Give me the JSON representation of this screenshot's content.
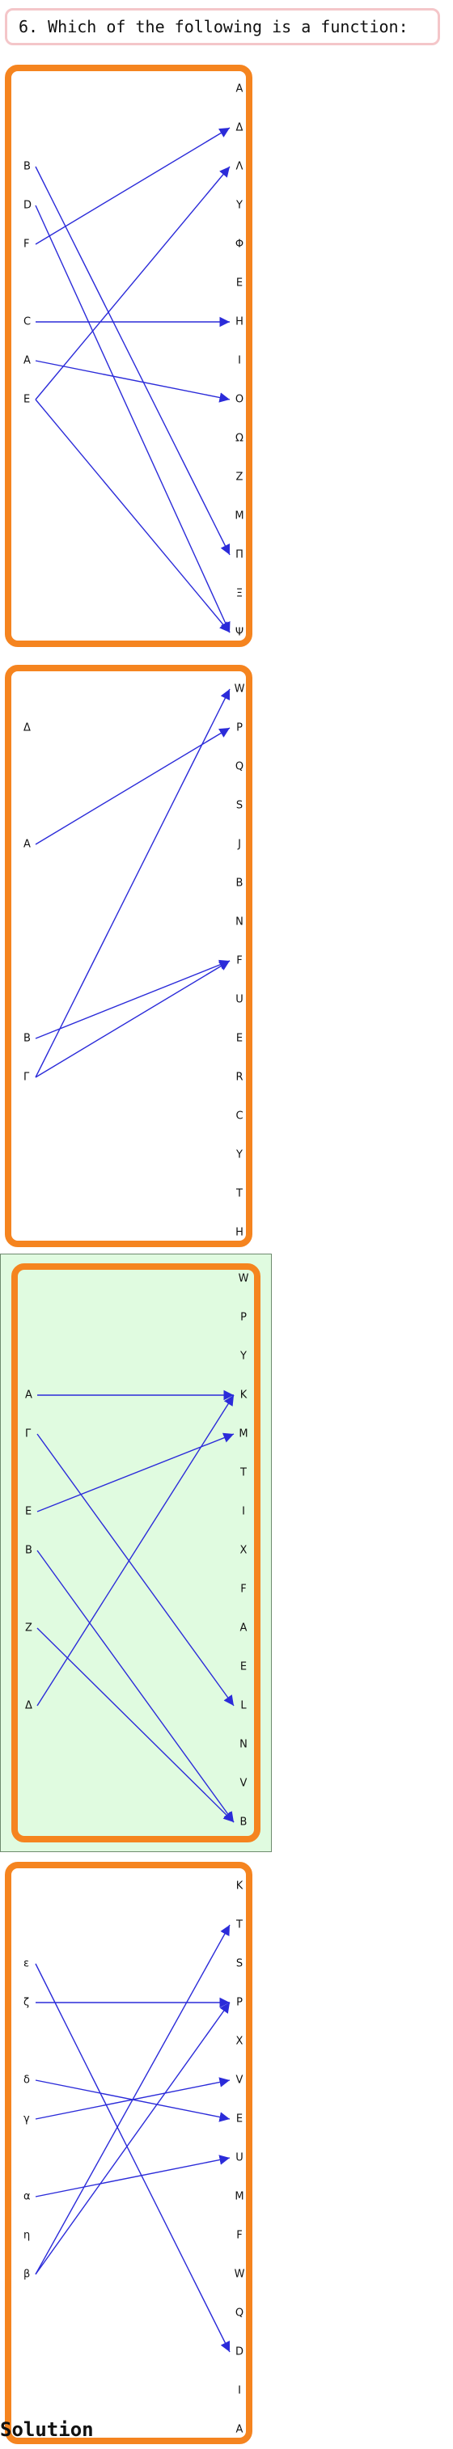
{
  "question": {
    "text": "6. Which of the following is a function:"
  },
  "options": [
    {
      "domain": [
        "B",
        "D",
        "F",
        "C",
        "A",
        "E"
      ],
      "codomain": [
        "A",
        "Δ",
        "Λ",
        "Y",
        "Φ",
        "E",
        "H",
        "I",
        "O",
        "Ω",
        "Z",
        "M",
        "Π",
        "Ξ",
        "Ψ"
      ],
      "arrows": [
        [
          "B",
          "Π"
        ],
        [
          "D",
          "Ψ"
        ],
        [
          "F",
          "Δ"
        ],
        [
          "C",
          "H"
        ],
        [
          "A",
          "O"
        ],
        [
          "E",
          "Λ"
        ],
        [
          "E",
          "Ψ"
        ]
      ],
      "selected": false
    },
    {
      "domain": [
        "Δ",
        "A",
        "B",
        "Γ"
      ],
      "codomain": [
        "W",
        "P",
        "Q",
        "S",
        "J",
        "B",
        "N",
        "F",
        "U",
        "E",
        "R",
        "C",
        "Y",
        "T",
        "H"
      ],
      "arrows": [
        [
          "A",
          "P"
        ],
        [
          "B",
          "F"
        ],
        [
          "Γ",
          "W"
        ],
        [
          "Γ",
          "F"
        ]
      ],
      "selected": false
    },
    {
      "domain": [
        "A",
        "Γ",
        "E",
        "B",
        "Z",
        "Δ"
      ],
      "codomain": [
        "W",
        "P",
        "Y",
        "K",
        "M",
        "T",
        "I",
        "X",
        "F",
        "A",
        "E",
        "L",
        "N",
        "V",
        "B"
      ],
      "arrows": [
        [
          "A",
          "K"
        ],
        [
          "Γ",
          "L"
        ],
        [
          "E",
          "M"
        ],
        [
          "B",
          "B"
        ],
        [
          "Z",
          "B"
        ],
        [
          "Δ",
          "K"
        ]
      ],
      "selected": true
    },
    {
      "domain": [
        "ε",
        "ζ",
        "δ",
        "γ",
        "α",
        "η",
        "β"
      ],
      "codomain": [
        "K",
        "T",
        "S",
        "P",
        "X",
        "V",
        "E",
        "U",
        "M",
        "F",
        "W",
        "Q",
        "D",
        "I",
        "A"
      ],
      "arrows": [
        [
          "ε",
          "D"
        ],
        [
          "ζ",
          "P"
        ],
        [
          "δ",
          "E"
        ],
        [
          "γ",
          "V"
        ],
        [
          "α",
          "U"
        ],
        [
          "β",
          "T"
        ],
        [
          "β",
          "P"
        ]
      ],
      "selected": false
    }
  ],
  "solution": {
    "label": "Solution"
  },
  "colors": {
    "arrow": "#2b2bd9",
    "frame": "#f5841f",
    "highlight": "#e0fbe0"
  }
}
